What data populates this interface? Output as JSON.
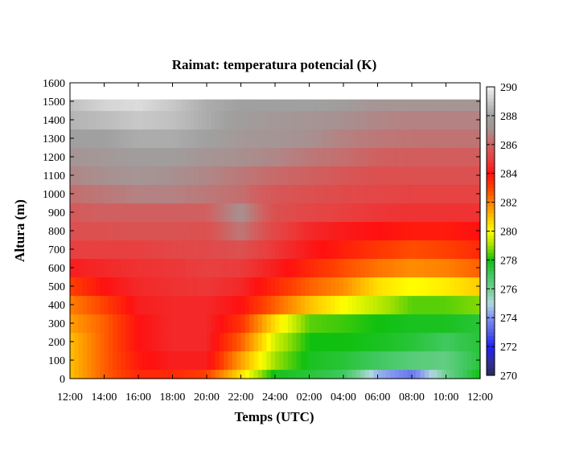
{
  "chart_data": {
    "type": "heatmap",
    "title": "Raimat: temperatura potencial (K)",
    "xlabel": "Temps (UTC)",
    "ylabel": "Altura (m)",
    "x_tick_labels": [
      "12:00",
      "14:00",
      "16:00",
      "18:00",
      "20:00",
      "22:00",
      "24:00",
      "02:00",
      "04:00",
      "06:00",
      "08:00",
      "10:00",
      "12:00"
    ],
    "y_ticks": [
      0,
      100,
      200,
      300,
      400,
      500,
      600,
      700,
      800,
      900,
      1000,
      1100,
      1200,
      1300,
      1400,
      1500,
      1600
    ],
    "ylim": [
      0,
      1600
    ],
    "xlim_hours": [
      0,
      24
    ],
    "colorbar": {
      "ticks": [
        270,
        272,
        274,
        276,
        278,
        280,
        282,
        284,
        286,
        288,
        290
      ],
      "range": [
        270,
        290
      ]
    },
    "colormap": [
      [
        270,
        "#2a2a5a"
      ],
      [
        271,
        "#3030a0"
      ],
      [
        272,
        "#2020ff"
      ],
      [
        273,
        "#5060e8"
      ],
      [
        274,
        "#8090f0"
      ],
      [
        275,
        "#b0d8e0"
      ],
      [
        276,
        "#70d090"
      ],
      [
        277,
        "#40c860"
      ],
      [
        278,
        "#10c010"
      ],
      [
        279,
        "#a0e000"
      ],
      [
        280,
        "#ffff00"
      ],
      [
        281,
        "#ffc000"
      ],
      [
        282,
        "#ff8000"
      ],
      [
        283,
        "#ff4000"
      ],
      [
        284,
        "#ff1010"
      ],
      [
        285,
        "#e84040"
      ],
      [
        286,
        "#d06060"
      ],
      [
        287,
        "#a89090"
      ],
      [
        288,
        "#a0a0a0"
      ],
      [
        289,
        "#c8c8c8"
      ],
      [
        290,
        "#f0f0f0"
      ]
    ],
    "time_hours": [
      0,
      2,
      4,
      6,
      8,
      10,
      12,
      14,
      16,
      18,
      20,
      22,
      24
    ],
    "heights_m": [
      0,
      100,
      200,
      300,
      400,
      500,
      600,
      700,
      800,
      900,
      1000,
      1100,
      1200,
      1300,
      1400,
      1500
    ],
    "values_K": [
      [
        281,
        282.5,
        283.5,
        283.5,
        283,
        280.5,
        277.8,
        277.5,
        277,
        274.5,
        273.5,
        276,
        278
      ],
      [
        281,
        282.5,
        283.8,
        284.3,
        284.3,
        281.5,
        279,
        277.8,
        277.5,
        277,
        276.5,
        276.3,
        277.5
      ],
      [
        281,
        282.5,
        284,
        284.5,
        284.5,
        282.5,
        279.5,
        278,
        278,
        277.8,
        277.5,
        277,
        277.5
      ],
      [
        281.5,
        282.5,
        284,
        284.5,
        284.5,
        283.3,
        280.5,
        278.5,
        278.3,
        278,
        277.8,
        277.8,
        277.5
      ],
      [
        282,
        283,
        284.3,
        284.5,
        284.5,
        284,
        282.5,
        281,
        280,
        279.3,
        278.5,
        278.5,
        278.8
      ],
      [
        283,
        284,
        284.5,
        284.7,
        284.8,
        284.5,
        283.5,
        282.5,
        281.8,
        280.5,
        280,
        280.3,
        280.8
      ],
      [
        284.3,
        284.5,
        284.7,
        284.8,
        285,
        284.9,
        284.3,
        283.5,
        282.8,
        282.2,
        281.8,
        282,
        282.5
      ],
      [
        285,
        285,
        285,
        285.2,
        285.3,
        285.5,
        284.8,
        284.2,
        283.7,
        283.2,
        282.8,
        283,
        283.5
      ],
      [
        285.5,
        285.5,
        285.6,
        285.6,
        285.5,
        286.5,
        285.2,
        284.5,
        284.2,
        284,
        283.8,
        283.8,
        284
      ],
      [
        285.8,
        286,
        286,
        286,
        286,
        287,
        285.5,
        285.2,
        285,
        284.8,
        284.7,
        284.7,
        284.7
      ],
      [
        286.3,
        286.5,
        286.7,
        286.7,
        286.5,
        286.3,
        285.7,
        285.5,
        285.3,
        285.2,
        285.1,
        285.1,
        285.1
      ],
      [
        286.8,
        287,
        287.3,
        287,
        286.8,
        286.5,
        286.2,
        286,
        285.7,
        285.5,
        285.5,
        285.5,
        285.5
      ],
      [
        287.3,
        287.5,
        287.8,
        287.8,
        287.3,
        287,
        286.8,
        286.5,
        286.3,
        286,
        285.9,
        285.9,
        285.9
      ],
      [
        288,
        288,
        288.3,
        288.3,
        288,
        287.5,
        287.3,
        287,
        286.7,
        286.5,
        286.4,
        286.4,
        286.4
      ],
      [
        288.5,
        288.7,
        289,
        288.8,
        288.3,
        287.8,
        287.5,
        287.3,
        287,
        286.8,
        286.7,
        286.7,
        286.7
      ],
      [
        288.8,
        289.3,
        289.5,
        289,
        288.3,
        288,
        288,
        288,
        287.8,
        287.3,
        287.3,
        287.3,
        287.3
      ]
    ],
    "data_top_m": 1510,
    "grid": false,
    "legend": "right colorbar"
  }
}
